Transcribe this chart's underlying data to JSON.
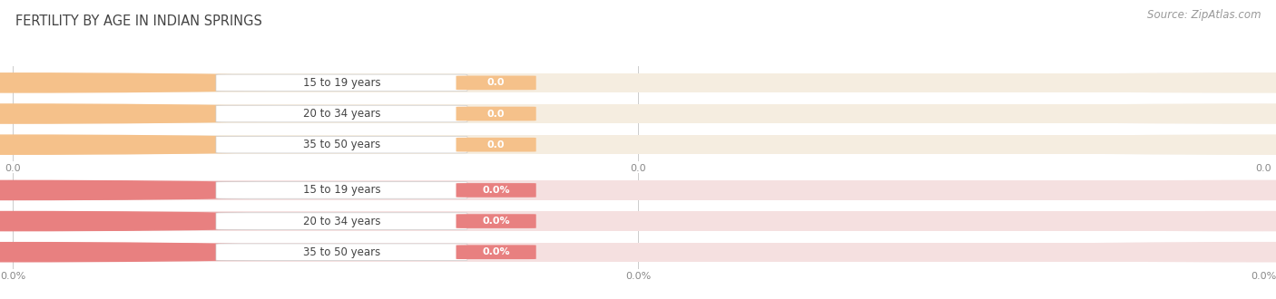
{
  "title": "Fertility by Age in Indian Springs",
  "source": "Source: ZipAtlas.com",
  "top_group": {
    "categories": [
      "15 to 19 years",
      "20 to 34 years",
      "35 to 50 years"
    ],
    "values": [
      0.0,
      0.0,
      0.0
    ],
    "bar_color": "#F5C18A",
    "track_color": "#F5EDE0",
    "circle_color": "#F5C18A",
    "value_label": "0.0",
    "tick_labels": [
      "0.0",
      "0.0",
      "0.0"
    ]
  },
  "bottom_group": {
    "categories": [
      "15 to 19 years",
      "20 to 34 years",
      "35 to 50 years"
    ],
    "values": [
      0.0,
      0.0,
      0.0
    ],
    "bar_color": "#E88080",
    "track_color": "#F5E0E0",
    "circle_color": "#E88080",
    "value_label": "0.0%",
    "tick_labels": [
      "0.0%",
      "0.0%",
      "0.0%"
    ]
  },
  "bg_color": "#FFFFFF",
  "title_fontsize": 10.5,
  "label_fontsize": 8.5,
  "source_fontsize": 8.5,
  "tick_fontsize": 8.0
}
